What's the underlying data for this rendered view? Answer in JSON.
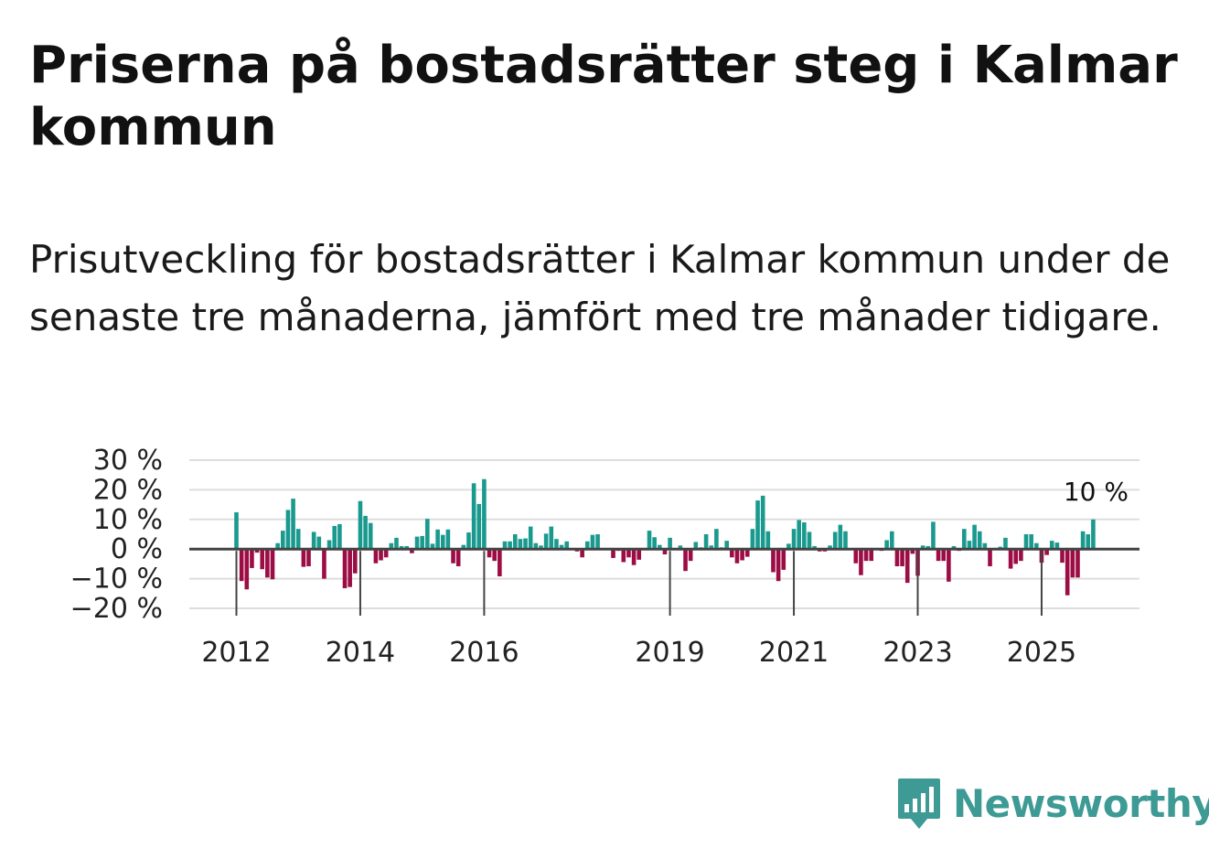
{
  "header": {
    "title": "Priserna på bostadsrätter steg i Kalmar kommun",
    "subtitle": "Prisutveckling för bostadsrätter i Kalmar kommun under de senaste tre månaderna, jämfört med tre månader tidigare."
  },
  "brand": {
    "name": "Newsworthy",
    "color": "#3d9a94"
  },
  "chart_data": {
    "type": "bar",
    "title": "",
    "xlabel": "",
    "ylabel": "",
    "ylim": [
      -20,
      30
    ],
    "yticks": [
      {
        "value": 30,
        "label": "30 %"
      },
      {
        "value": 20,
        "label": "20 %"
      },
      {
        "value": 10,
        "label": "10 %"
      },
      {
        "value": 0,
        "label": "0 %"
      },
      {
        "value": -10,
        "label": "−10 %"
      },
      {
        "value": -20,
        "label": "−20 %"
      }
    ],
    "xticks": [
      {
        "index": 0,
        "label": "2012"
      },
      {
        "index": 24,
        "label": "2014"
      },
      {
        "index": 48,
        "label": "2016"
      },
      {
        "index": 84,
        "label": "2019"
      },
      {
        "index": 108,
        "label": "2021"
      },
      {
        "index": 132,
        "label": "2023"
      },
      {
        "index": 156,
        "label": "2025"
      }
    ],
    "start": "2012-01",
    "last_label": "10 %",
    "positive_color": "#1a9a8e",
    "negative_color": "#9c0d45",
    "values": [
      12.4,
      -10.8,
      -13.6,
      -6.4,
      -1.2,
      -6.8,
      -9.6,
      -10.2,
      2.0,
      6.2,
      13.2,
      17.0,
      6.8,
      -6.0,
      -5.8,
      5.8,
      4.2,
      -10.0,
      3.0,
      7.8,
      8.4,
      -13.2,
      -12.8,
      -8.2,
      16.2,
      11.2,
      8.8,
      -4.8,
      -3.8,
      -2.8,
      2.0,
      3.8,
      1.0,
      1.0,
      -1.4,
      4.2,
      4.4,
      10.2,
      1.8,
      6.6,
      4.8,
      6.6,
      -4.8,
      -5.8,
      1.4,
      5.6,
      22.2,
      15.2,
      23.6,
      -2.8,
      -4.0,
      -9.2,
      2.6,
      2.6,
      5.0,
      3.4,
      3.6,
      7.6,
      2.0,
      1.2,
      5.2,
      7.6,
      3.4,
      1.4,
      2.6,
      0.0,
      -0.8,
      -2.8,
      2.6,
      4.8,
      5.0,
      0.0,
      0.2,
      -3.0,
      -0.6,
      -4.4,
      -2.8,
      -5.4,
      -3.6,
      0.0,
      6.2,
      4.0,
      1.4,
      -1.8,
      3.8,
      0.2,
      1.2,
      -7.4,
      -4.0,
      2.4,
      0.6,
      5.0,
      1.2,
      6.8,
      0.6,
      2.8,
      -2.8,
      -4.8,
      -3.8,
      -2.6,
      6.8,
      16.4,
      18.0,
      6.0,
      -7.8,
      -10.8,
      -7.0,
      1.8,
      6.8,
      9.8,
      9.0,
      5.8,
      1.0,
      -0.8,
      -0.8,
      1.2,
      5.8,
      8.2,
      6.0,
      -0.4,
      -4.8,
      -8.8,
      -4.0,
      -4.0,
      0.0,
      -0.6,
      3.0,
      6.0,
      -5.8,
      -5.8,
      -11.4,
      -1.6,
      -9.0,
      1.2,
      1.0,
      9.2,
      -4.0,
      -4.0,
      -11.0,
      1.0,
      -0.6,
      6.8,
      2.8,
      8.2,
      6.0,
      2.0,
      -5.8,
      0.0,
      0.8,
      3.8,
      -6.6,
      -5.0,
      -4.0,
      5.0,
      5.0,
      2.0,
      -4.6,
      -2.0,
      2.8,
      2.2,
      -4.6,
      -15.6,
      -9.6,
      -9.6,
      6.0,
      5.0,
      10.0
    ]
  }
}
